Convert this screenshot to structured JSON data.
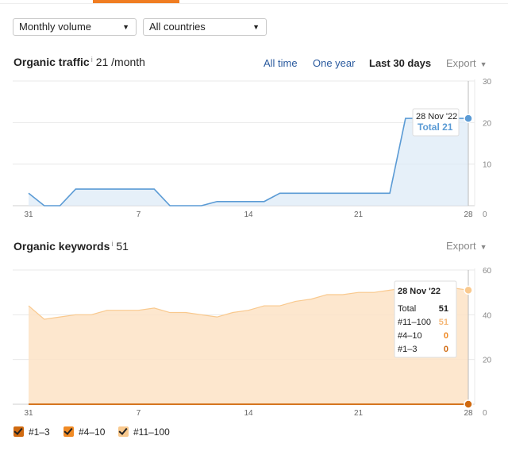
{
  "filters": {
    "volume_select": "Monthly volume",
    "country_select": "All countries"
  },
  "traffic": {
    "title": "Organic traffic",
    "info_mark": "i",
    "value": "21 /month",
    "ranges": [
      "All time",
      "One year",
      "Last 30 days"
    ],
    "active_range": "Last 30 days",
    "export_label": "Export",
    "tooltip": {
      "date": "28 Nov '22",
      "label": "Total 21"
    }
  },
  "keywords": {
    "title": "Organic keywords",
    "info_mark": "i",
    "value": "51",
    "export_label": "Export",
    "tooltip": {
      "date": "28 Nov '22",
      "rows": [
        {
          "label": "Total",
          "value": "51",
          "color": "#222222"
        },
        {
          "label": "#11–100",
          "value": "51",
          "color": "#f5b97a"
        },
        {
          "label": "#4–10",
          "value": "0",
          "color": "#f08a24"
        },
        {
          "label": "#1–3",
          "value": "0",
          "color": "#d06a10"
        }
      ]
    }
  },
  "legend": [
    {
      "label": "#1–3",
      "color": "#d06a10"
    },
    {
      "label": "#4–10",
      "color": "#f08a24"
    },
    {
      "label": "#11–100",
      "color": "#f9c98e"
    }
  ],
  "chart_data": [
    {
      "type": "area",
      "title": "Organic traffic",
      "x_tick_labels": [
        "31",
        "7",
        "14",
        "21",
        "28"
      ],
      "x_tick_positions": [
        0,
        7,
        14,
        21,
        28
      ],
      "ylim": [
        0,
        30
      ],
      "y_ticks": [
        10,
        20,
        30
      ],
      "grid": true,
      "series": [
        {
          "color": "#5b9bd5",
          "values": [
            3,
            0,
            0,
            4,
            4,
            4,
            4,
            4,
            4,
            0,
            0,
            0,
            1,
            1,
            1,
            1,
            3,
            3,
            3,
            3,
            3,
            3,
            3,
            3,
            21,
            21,
            21,
            21,
            21
          ]
        }
      ]
    },
    {
      "type": "area",
      "title": "Organic keywords",
      "x_tick_labels": [
        "31",
        "7",
        "14",
        "21",
        "28"
      ],
      "x_tick_positions": [
        0,
        7,
        14,
        21,
        28
      ],
      "ylim": [
        0,
        60
      ],
      "y_ticks": [
        20,
        40,
        60
      ],
      "grid": true,
      "series": [
        {
          "name": "#11–100",
          "color": "#f9c98e",
          "values": [
            44,
            38,
            39,
            40,
            40,
            42,
            42,
            42,
            43,
            41,
            41,
            40,
            39,
            41,
            42,
            44,
            44,
            46,
            47,
            49,
            49,
            50,
            50,
            51,
            52,
            52,
            52,
            52,
            51
          ]
        },
        {
          "name": "#4–10",
          "color": "#f08a24",
          "values": [
            0,
            0,
            0,
            0,
            0,
            0,
            0,
            0,
            0,
            0,
            0,
            0,
            0,
            0,
            0,
            0,
            0,
            0,
            0,
            0,
            0,
            0,
            0,
            0,
            0,
            0,
            0,
            0,
            0
          ]
        },
        {
          "name": "#1–3",
          "color": "#d06a10",
          "values": [
            0,
            0,
            0,
            0,
            0,
            0,
            0,
            0,
            0,
            0,
            0,
            0,
            0,
            0,
            0,
            0,
            0,
            0,
            0,
            0,
            0,
            0,
            0,
            0,
            0,
            0,
            0,
            0,
            0
          ]
        }
      ]
    }
  ]
}
